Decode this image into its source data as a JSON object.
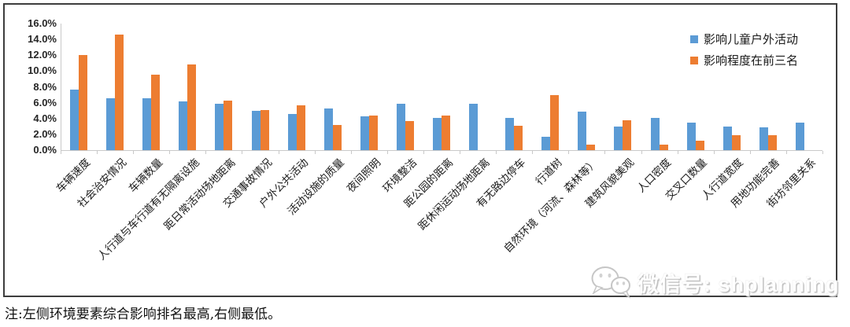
{
  "chart_data": {
    "type": "bar",
    "title": "",
    "xlabel": "",
    "ylabel": "",
    "ylim": [
      0,
      16
    ],
    "ytick_step": 2,
    "yticks": [
      "0.0%",
      "2.0%",
      "4.0%",
      "6.0%",
      "8.0%",
      "10.0%",
      "12.0%",
      "14.0%",
      "16.0%"
    ],
    "grid": false,
    "legend_position": "top-right",
    "categories": [
      "车辆速度",
      "社会治安情况",
      "车辆数量",
      "人行道与车行道有无隔离设施",
      "距日常活动场地距离",
      "交通事故情况",
      "户外公共活动",
      "活动设施的质量",
      "夜间照明",
      "环境整洁",
      "距公园的距离",
      "距休闲运动场地距离",
      "有无路边停车",
      "行道树",
      "自然环境（河流、森林等）",
      "建筑风貌美观",
      "人口密度",
      "交叉口数量",
      "人行道宽度",
      "用地功能完善",
      "街坊邻里关系"
    ],
    "series": [
      {
        "name": "影响儿童户外活动",
        "color": "#5B9BD5",
        "values": [
          7.7,
          6.6,
          6.6,
          6.2,
          5.9,
          5.0,
          4.6,
          5.3,
          4.3,
          5.9,
          4.1,
          5.9,
          4.1,
          1.7,
          4.9,
          3.0,
          4.1,
          3.5,
          3.0,
          2.9,
          3.5
        ]
      },
      {
        "name": "影响程度在前三名",
        "color": "#ED7D31",
        "values": [
          12.0,
          14.6,
          9.5,
          10.8,
          6.3,
          5.1,
          5.7,
          3.2,
          4.4,
          3.7,
          4.4,
          0,
          3.1,
          7.0,
          0.7,
          3.8,
          0.7,
          1.2,
          1.9,
          1.9,
          0
        ]
      }
    ]
  },
  "legend": {
    "items": [
      {
        "label": "影响儿童户外活动",
        "color": "#5B9BD5"
      },
      {
        "label": "影响程度在前三名",
        "color": "#ED7D31"
      }
    ]
  },
  "watermark": {
    "icon": "wechat-icon",
    "label": "微信号: shplanning"
  },
  "note": "注:左侧环境要素综合影响排名最高,右侧最低。",
  "colors": {
    "series_blue": "#5B9BD5",
    "series_orange": "#ED7D31",
    "axis_line": "#c9c9c9",
    "border": "#3d3d3d",
    "text": "#262626"
  }
}
